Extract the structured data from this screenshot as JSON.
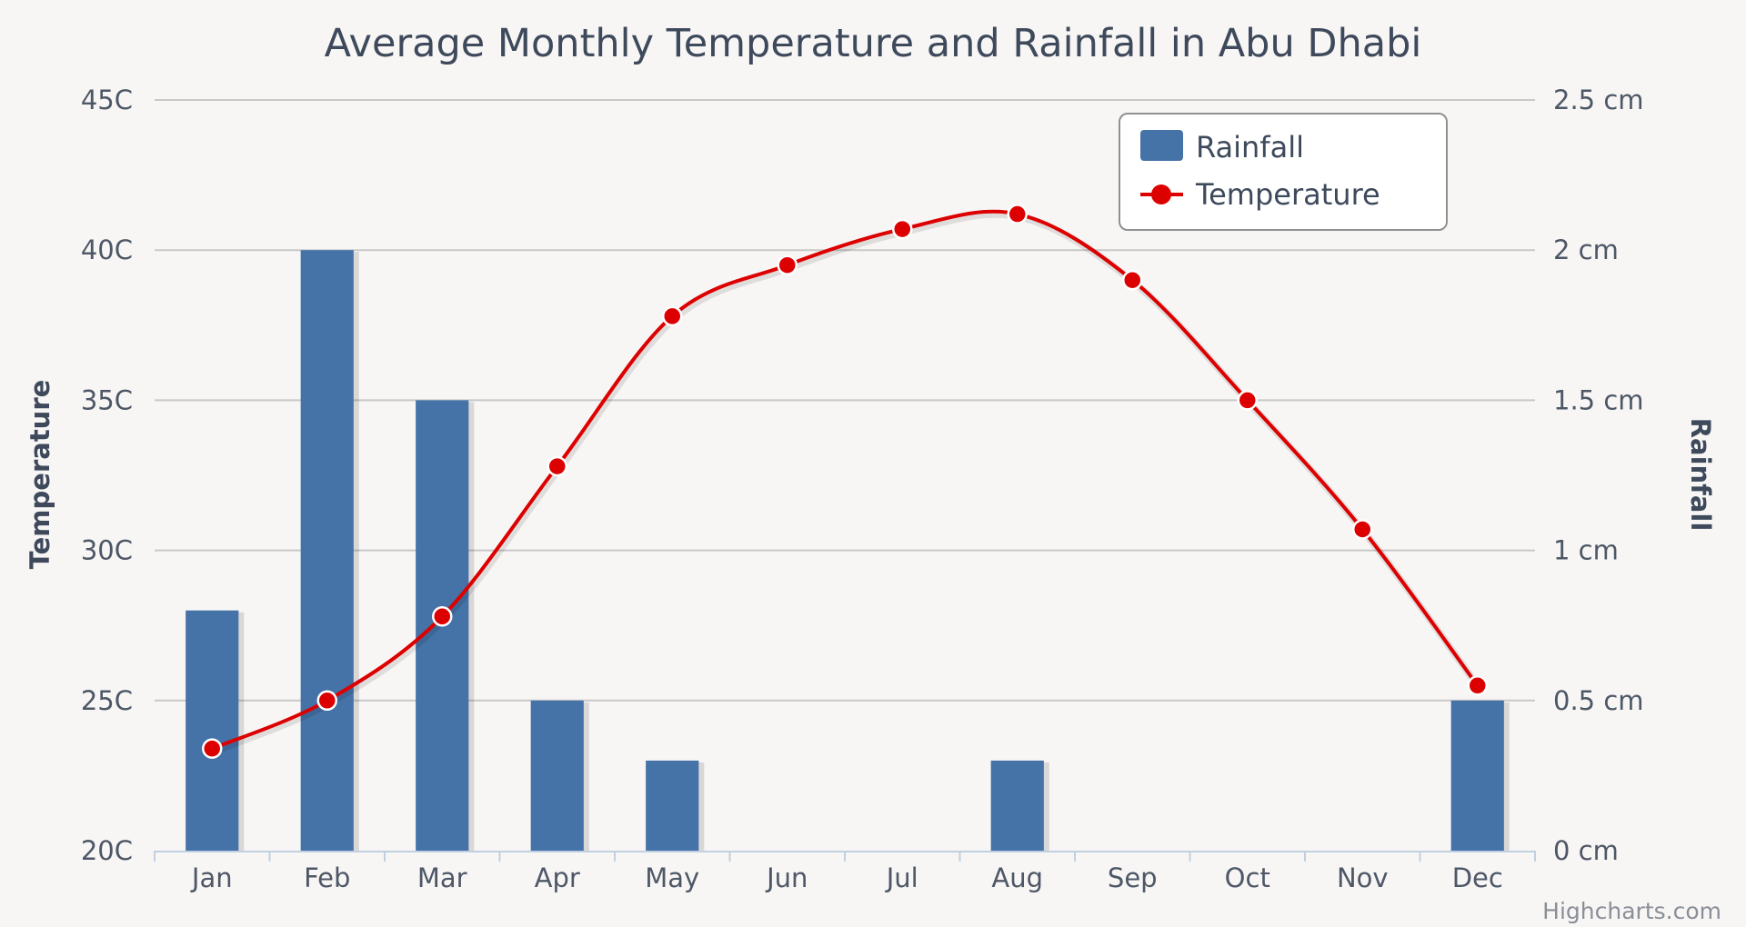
{
  "chart_data": {
    "type": "bar",
    "title": "Average Monthly Temperature and Rainfall in Abu Dhabi",
    "categories": [
      "Jan",
      "Feb",
      "Mar",
      "Apr",
      "May",
      "Jun",
      "Jul",
      "Aug",
      "Sep",
      "Oct",
      "Nov",
      "Dec"
    ],
    "series": [
      {
        "name": "Rainfall",
        "type": "bar",
        "axis": "right",
        "color": "#4572a7",
        "values": [
          0.8,
          2.0,
          1.5,
          0.5,
          0.3,
          0,
          0,
          0.3,
          0,
          0,
          0,
          0.5
        ]
      },
      {
        "name": "Temperature",
        "type": "line",
        "axis": "left",
        "color": "#dd0000",
        "values": [
          23.4,
          25.0,
          27.8,
          32.8,
          37.8,
          39.5,
          40.7,
          41.2,
          39.0,
          35.0,
          30.7,
          25.5
        ]
      }
    ],
    "y_left": {
      "label": "Temperature",
      "ylim": [
        20,
        45
      ],
      "ticks": [
        20,
        25,
        30,
        35,
        40,
        45
      ],
      "tick_labels": [
        "20C",
        "25C",
        "30C",
        "35C",
        "40C",
        "45C"
      ]
    },
    "y_right": {
      "label": "Rainfall",
      "ylim": [
        0,
        2.5
      ],
      "ticks": [
        0,
        0.5,
        1,
        1.5,
        2,
        2.5
      ],
      "tick_labels": [
        "0 cm",
        "0.5 cm",
        "1 cm",
        "1.5 cm",
        "2 cm",
        "2.5 cm"
      ]
    },
    "grid": true,
    "legend": {
      "position": "top-right",
      "entries": [
        "Rainfall",
        "Temperature"
      ]
    },
    "credits": "Highcharts.com"
  }
}
